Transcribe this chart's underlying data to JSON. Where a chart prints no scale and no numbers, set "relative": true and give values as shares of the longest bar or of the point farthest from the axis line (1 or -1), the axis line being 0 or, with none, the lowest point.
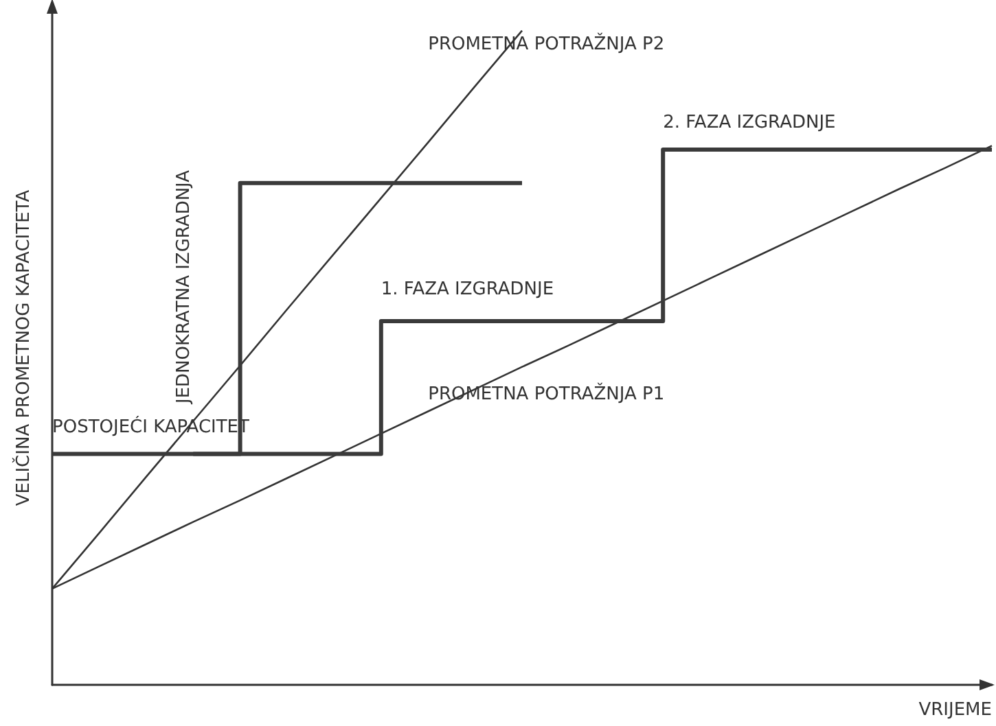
{
  "chart_data": {
    "type": "line",
    "relative": true,
    "xlabel": "VRIJEME",
    "ylabel": "VELIČINA PROMETNOG KAPACITETA",
    "marker": "none",
    "categories": [
      null,
      null,
      null,
      null,
      null,
      null,
      null,
      null,
      null,
      null,
      null,
      null,
      null,
      null,
      null,
      null,
      null,
      null,
      null,
      null,
      null
    ],
    "series": [
      {
        "color": "#333333",
        "values": [
          0.147,
          0.232,
          0.318,
          0.403,
          0.488,
          0.574,
          0.659,
          0.744,
          0.829,
          0.915,
          1.0,
          null,
          null,
          null,
          null,
          null,
          null,
          null,
          null,
          null,
          null
        ]
      },
      {
        "color": "#333333",
        "values": [
          0.147,
          0.181,
          0.215,
          0.249,
          0.282,
          0.316,
          0.35,
          0.384,
          0.418,
          0.452,
          0.486,
          0.519,
          0.553,
          0.587,
          0.621,
          0.655,
          0.689,
          0.723,
          0.757,
          0.79,
          0.824
        ]
      },
      {
        "type": "step",
        "color": "#3a3a3a",
        "values": [
          0.353,
          0.353,
          0.353,
          0.353,
          0.353,
          0.353,
          0.353,
          0.556,
          0.556,
          0.556,
          0.556,
          0.556,
          0.556,
          0.818,
          0.818,
          0.818,
          0.818,
          0.818,
          0.818,
          0.818,
          0.818
        ]
      },
      {
        "type": "step",
        "color": "#3a3a3a",
        "values": [
          null,
          null,
          null,
          0.353,
          0.767,
          0.767,
          0.767,
          0.767,
          0.767,
          0.767,
          0.767,
          null,
          null,
          null,
          null,
          null,
          null,
          null,
          null,
          null,
          null
        ]
      }
    ],
    "annotations": [
      "PROMETNA POTRAŽNJA P2",
      "2. FAZA IZGRADNJE",
      "JEDNOKRATNA IZGRADNJA",
      "1. FAZA IZGRADNJE",
      "PROMETNA POTRAŽNJA P1",
      "POSTOJEĆI KAPACITET"
    ]
  }
}
